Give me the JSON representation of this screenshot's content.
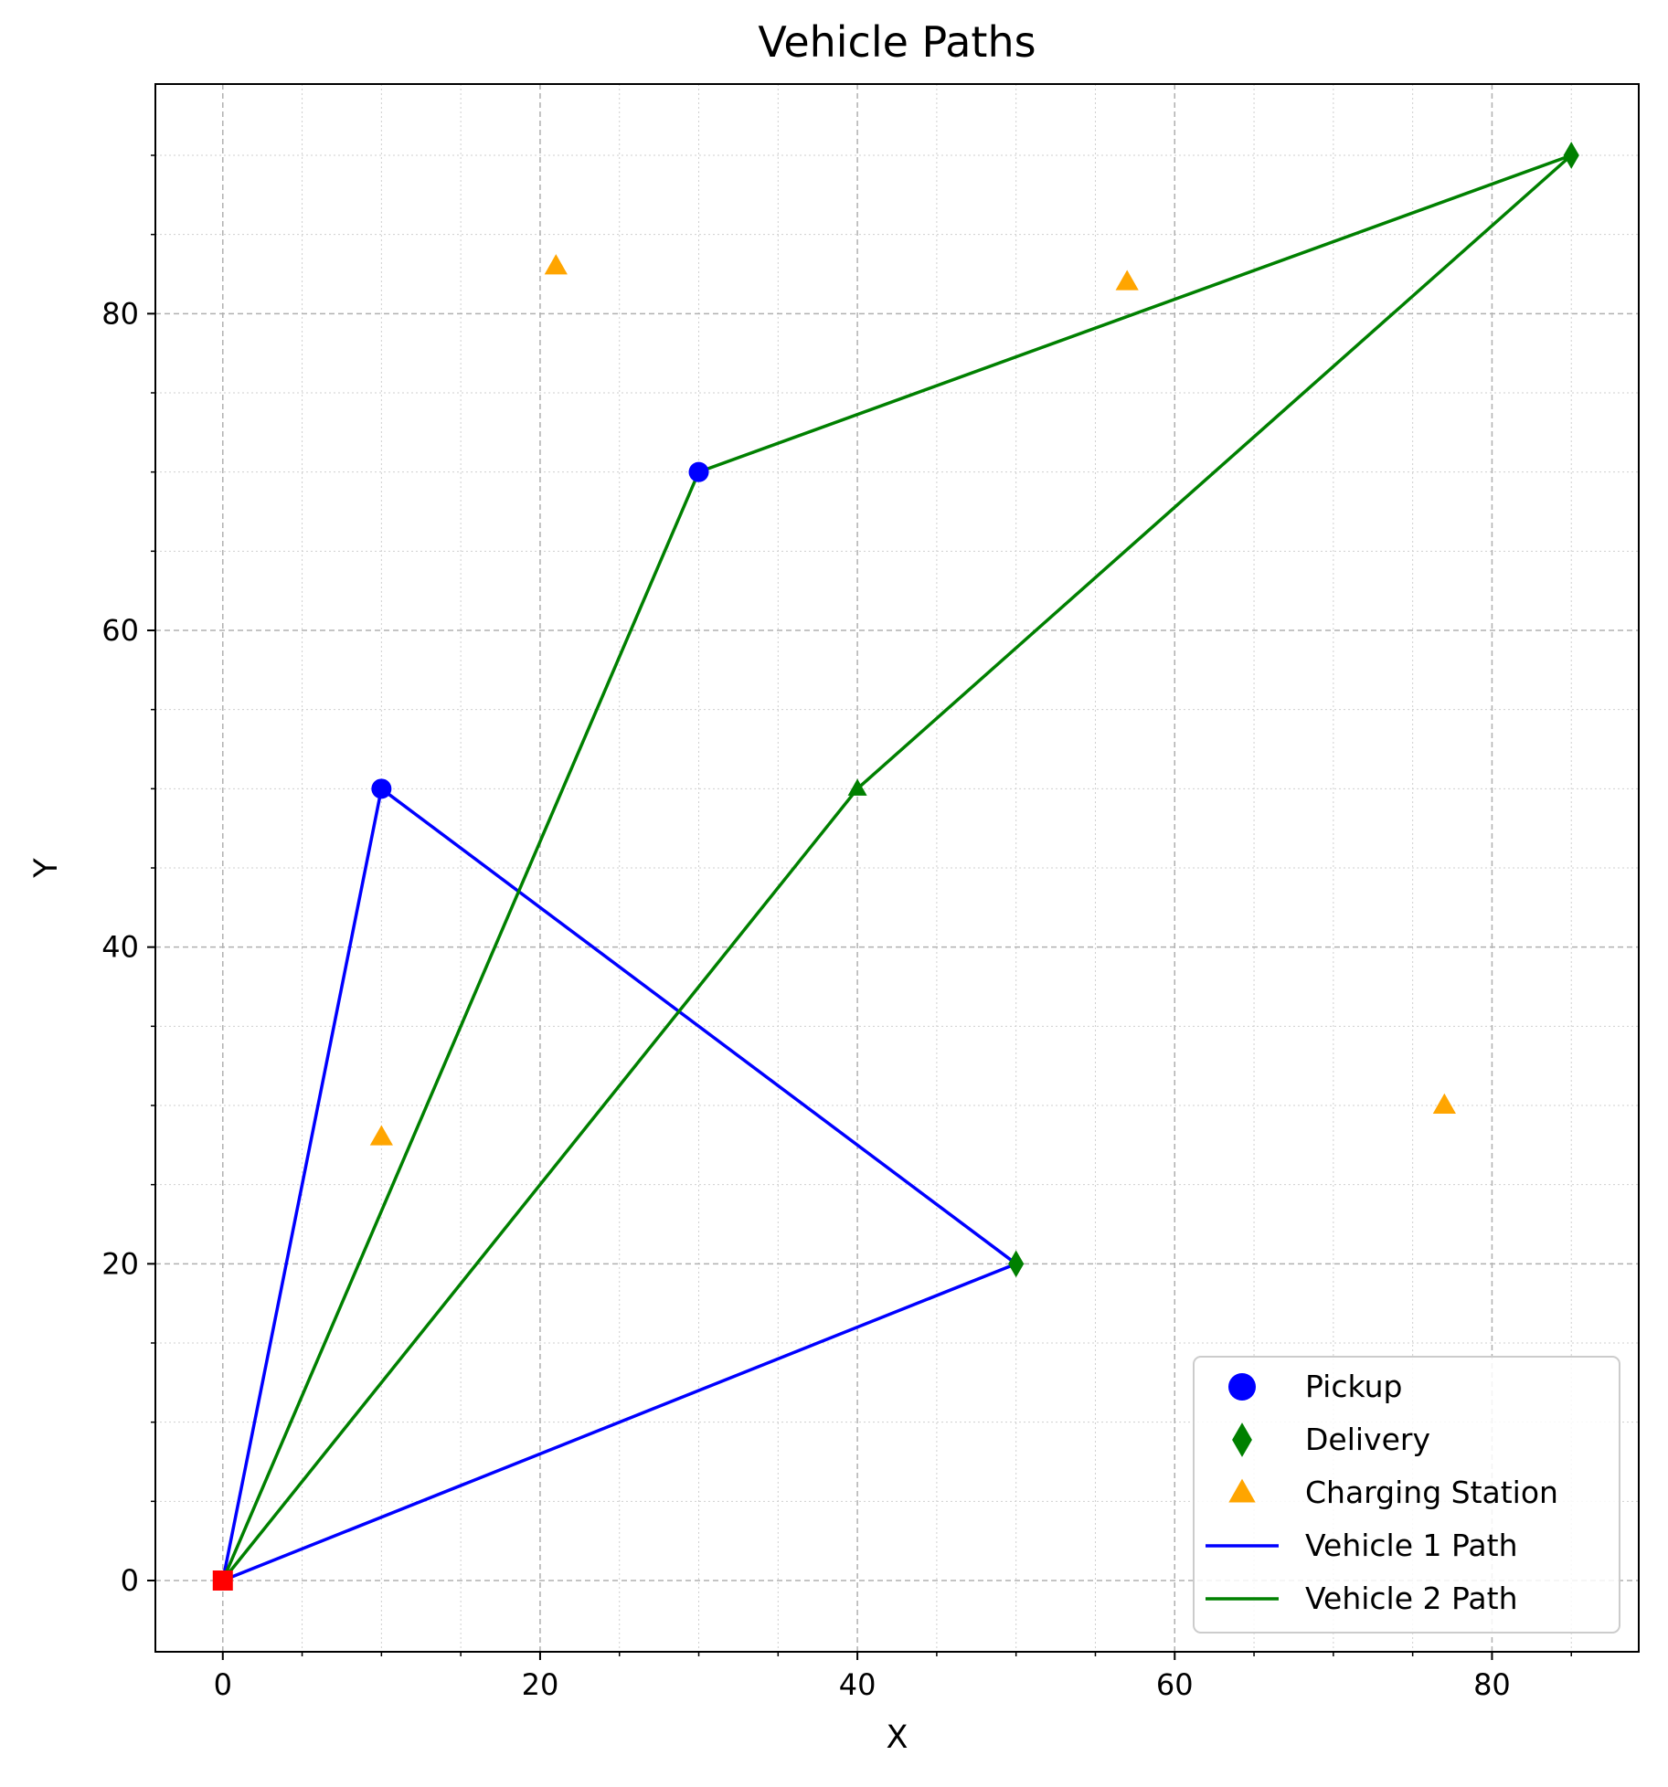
{
  "chart_data": {
    "type": "scatter",
    "title": "Vehicle Paths",
    "xlabel": "X",
    "ylabel": "Y",
    "xlim": [
      -4.25,
      89.25
    ],
    "ylim": [
      -4.5,
      94.5
    ],
    "xticks": [
      0,
      20,
      40,
      60,
      80
    ],
    "yticks": [
      0,
      20,
      40,
      60,
      80
    ],
    "x_minor_step": 5,
    "y_minor_step": 5,
    "grid": true,
    "grid_minor": true,
    "legend_position": "lower-right",
    "depot": {
      "x": 0,
      "y": 0,
      "color": "#ff0000",
      "marker": "square"
    },
    "pickups": {
      "name": "Pickup",
      "color": "#0000ff",
      "marker": "circle",
      "points": [
        [
          10,
          50
        ],
        [
          30,
          70
        ]
      ]
    },
    "deliveries": {
      "name": "Delivery",
      "color": "#008000",
      "marker": "diamond",
      "points": [
        [
          50,
          20
        ],
        [
          85,
          90
        ]
      ]
    },
    "charging_stations": {
      "name": "Charging Station",
      "color": "#ffa500",
      "marker": "triangle",
      "points": [
        [
          21,
          83
        ],
        [
          57,
          82
        ],
        [
          10,
          28
        ],
        [
          77,
          30
        ]
      ]
    },
    "series": [
      {
        "name": "Vehicle 1 Path",
        "color": "#0000ff",
        "points": [
          [
            0,
            0
          ],
          [
            10,
            50
          ],
          [
            50,
            20
          ],
          [
            0,
            0
          ]
        ],
        "markers": [
          "square",
          "circle",
          "diamond",
          "square"
        ]
      },
      {
        "name": "Vehicle 2 Path",
        "color": "#008000",
        "points": [
          [
            0,
            0
          ],
          [
            30,
            70
          ],
          [
            85,
            90
          ],
          [
            40,
            50
          ],
          [
            0,
            0
          ]
        ],
        "markers": [
          "square",
          "circle",
          "diamond",
          "triangle",
          "square"
        ]
      }
    ]
  }
}
